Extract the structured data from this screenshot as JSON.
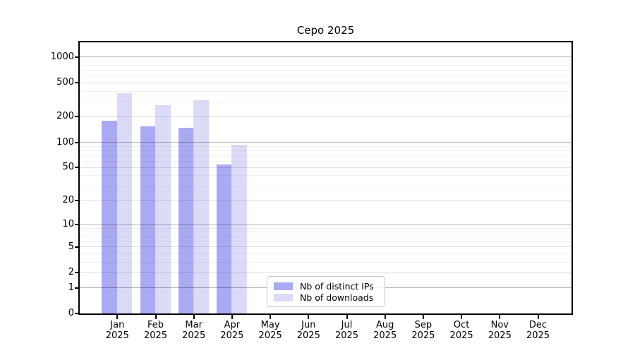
{
  "title": "Cepo 2025",
  "legend": {
    "items": [
      {
        "label": "Nb of distinct IPs",
        "color": "#a9a9f4"
      },
      {
        "label": "Nb of downloads",
        "color": "#dbdbf8"
      }
    ]
  },
  "x_labels": [
    {
      "line1": "Jan",
      "line2": "2025"
    },
    {
      "line1": "Feb",
      "line2": "2025"
    },
    {
      "line1": "Mar",
      "line2": "2025"
    },
    {
      "line1": "Apr",
      "line2": "2025"
    },
    {
      "line1": "May",
      "line2": "2025"
    },
    {
      "line1": "Jun",
      "line2": "2025"
    },
    {
      "line1": "Jul",
      "line2": "2025"
    },
    {
      "line1": "Aug",
      "line2": "2025"
    },
    {
      "line1": "Sep",
      "line2": "2025"
    },
    {
      "line1": "Oct",
      "line2": "2025"
    },
    {
      "line1": "Nov",
      "line2": "2025"
    },
    {
      "line1": "Dec",
      "line2": "2025"
    }
  ],
  "chart_data": {
    "type": "bar",
    "title": "Cepo 2025",
    "scale": "log1p",
    "categories": [
      "Jan 2025",
      "Feb 2025",
      "Mar 2025",
      "Apr 2025",
      "May 2025",
      "Jun 2025",
      "Jul 2025",
      "Aug 2025",
      "Sep 2025",
      "Oct 2025",
      "Nov 2025",
      "Dec 2025"
    ],
    "series": [
      {
        "name": "Nb of distinct IPs",
        "color": "#a9a9f4",
        "values": [
          180,
          153,
          148,
          55,
          0,
          0,
          0,
          0,
          0,
          0,
          0,
          0
        ]
      },
      {
        "name": "Nb of downloads",
        "color": "#dbdbf8",
        "values": [
          376,
          272,
          315,
          94,
          0,
          0,
          0,
          0,
          0,
          0,
          0,
          0
        ]
      }
    ],
    "y_ticks": [
      0,
      1,
      2,
      5,
      10,
      20,
      50,
      100,
      200,
      500,
      1000
    ],
    "minor_gridlines": [
      3,
      4,
      6,
      7,
      8,
      9,
      30,
      40,
      60,
      70,
      80,
      90,
      300,
      400,
      600,
      700,
      800,
      900
    ],
    "decade_gridlines": [
      1,
      10,
      100,
      1000
    ],
    "ylim": [
      0,
      1480
    ],
    "xlabel": "",
    "ylabel": "",
    "grid": "horizontal",
    "legend_position": "inside lower middle"
  }
}
